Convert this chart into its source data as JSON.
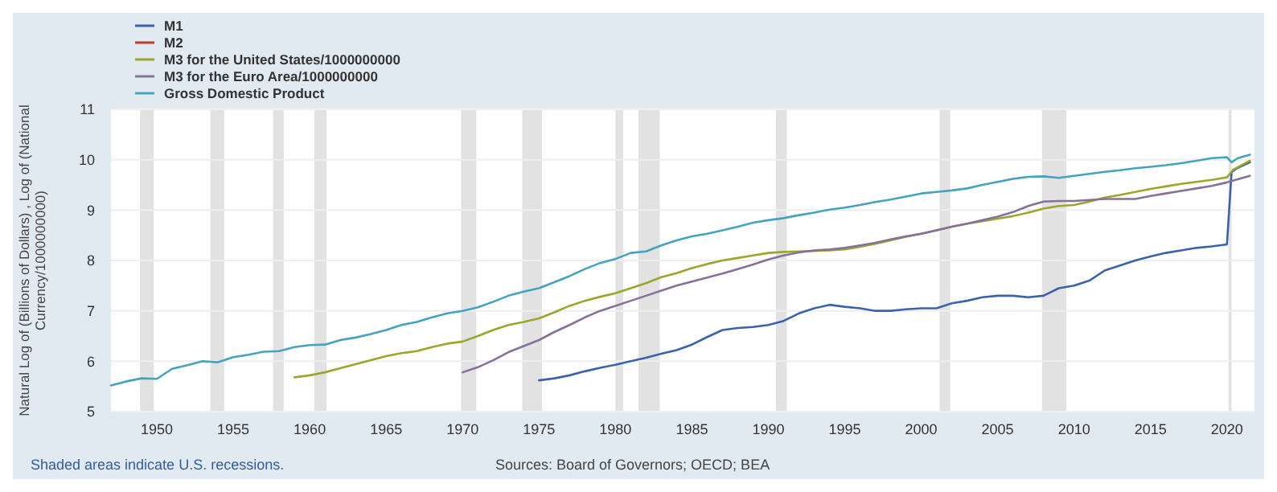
{
  "chart_data": {
    "type": "line",
    "ylabel": "Natural Log of (Billions of Dollars) , Log of (National Currency/1000000000)",
    "annotations": [
      "Shaded areas indicate U.S. recessions.",
      "Sources: Board of Governors; OECD; BEA"
    ],
    "xlim": [
      1947,
      2021.8
    ],
    "xticks": [
      1950,
      1955,
      1960,
      1965,
      1970,
      1975,
      1980,
      1985,
      1990,
      1995,
      2000,
      2005,
      2010,
      2015,
      2020
    ],
    "ylim": [
      5,
      11
    ],
    "yticks": [
      5,
      6,
      7,
      8,
      9,
      10,
      11
    ],
    "grid": "y",
    "legend": "top left",
    "line_style": "solid",
    "marker": "none",
    "bands": [
      {
        "axis": "x",
        "from": 1948.9,
        "to": 1949.8,
        "color": "#e2e2e2"
      },
      {
        "axis": "x",
        "from": 1953.5,
        "to": 1954.4,
        "color": "#e2e2e2"
      },
      {
        "axis": "x",
        "from": 1957.6,
        "to": 1958.3,
        "color": "#e2e2e2"
      },
      {
        "axis": "x",
        "from": 1960.3,
        "to": 1961.1,
        "color": "#e2e2e2"
      },
      {
        "axis": "x",
        "from": 1969.9,
        "to": 1970.9,
        "color": "#e2e2e2"
      },
      {
        "axis": "x",
        "from": 1973.9,
        "to": 1975.2,
        "color": "#e2e2e2"
      },
      {
        "axis": "x",
        "from": 1980.0,
        "to": 1980.5,
        "color": "#e2e2e2"
      },
      {
        "axis": "x",
        "from": 1981.5,
        "to": 1982.9,
        "color": "#e2e2e2"
      },
      {
        "axis": "x",
        "from": 1990.5,
        "to": 1991.2,
        "color": "#e2e2e2"
      },
      {
        "axis": "x",
        "from": 2001.2,
        "to": 2001.9,
        "color": "#e2e2e2"
      },
      {
        "axis": "x",
        "from": 2007.9,
        "to": 2009.5,
        "color": "#e2e2e2"
      },
      {
        "axis": "x",
        "from": 2020.1,
        "to": 2020.3,
        "color": "#e2e2e2"
      }
    ],
    "series": [
      {
        "name": "M1",
        "color": "#3a62ad",
        "x": [
          1975,
          1976,
          1977,
          1978,
          1979,
          1980,
          1981,
          1982,
          1983,
          1984,
          1985,
          1986,
          1987,
          1988,
          1989,
          1990,
          1991,
          1992,
          1993,
          1994,
          1995,
          1996,
          1997,
          1998,
          1999,
          2000,
          2001,
          2002,
          2003,
          2004,
          2005,
          2006,
          2007,
          2008,
          2009,
          2010,
          2011,
          2012,
          2013,
          2014,
          2015,
          2016,
          2017,
          2018,
          2019,
          2020.0,
          2020.3,
          2020.6,
          2021.5
        ],
        "values": [
          5.62,
          5.66,
          5.72,
          5.8,
          5.87,
          5.93,
          6.0,
          6.07,
          6.15,
          6.22,
          6.33,
          6.48,
          6.62,
          6.66,
          6.68,
          6.72,
          6.8,
          6.95,
          7.05,
          7.12,
          7.08,
          7.05,
          7.0,
          7.0,
          7.03,
          7.05,
          7.05,
          7.15,
          7.2,
          7.27,
          7.3,
          7.3,
          7.27,
          7.3,
          7.45,
          7.5,
          7.6,
          7.8,
          7.9,
          8.0,
          8.08,
          8.15,
          8.2,
          8.25,
          8.28,
          8.32,
          9.75,
          9.82,
          9.95
        ]
      },
      {
        "name": "M2",
        "color": "#c0392b"
      },
      {
        "name": "M3 for the United States/1000000000",
        "color": "#9ba62b",
        "x": [
          1959,
          1960,
          1961,
          1962,
          1963,
          1964,
          1965,
          1966,
          1967,
          1968,
          1969,
          1970,
          1971,
          1972,
          1973,
          1974,
          1975,
          1976,
          1977,
          1978,
          1979,
          1980,
          1981,
          1982,
          1983,
          1984,
          1985,
          1986,
          1987,
          1988,
          1989,
          1990,
          1991,
          1992,
          1993,
          1994,
          1995,
          1996,
          1997,
          1998,
          1999,
          2000,
          2001,
          2002,
          2003,
          2004,
          2005,
          2006,
          2007,
          2008,
          2009,
          2010,
          2011,
          2012,
          2013,
          2014,
          2015,
          2016,
          2017,
          2018,
          2019,
          2020.0,
          2020.4,
          2021.5
        ],
        "values": [
          5.68,
          5.72,
          5.78,
          5.86,
          5.94,
          6.02,
          6.1,
          6.16,
          6.2,
          6.28,
          6.35,
          6.39,
          6.5,
          6.62,
          6.72,
          6.78,
          6.85,
          6.97,
          7.1,
          7.2,
          7.28,
          7.35,
          7.45,
          7.55,
          7.67,
          7.75,
          7.85,
          7.93,
          8.0,
          8.05,
          8.1,
          8.15,
          8.17,
          8.18,
          8.19,
          8.2,
          8.22,
          8.27,
          8.33,
          8.4,
          8.47,
          8.53,
          8.6,
          8.67,
          8.73,
          8.78,
          8.83,
          8.88,
          8.95,
          9.03,
          9.08,
          9.1,
          9.17,
          9.25,
          9.3,
          9.36,
          9.42,
          9.47,
          9.52,
          9.56,
          9.6,
          9.65,
          9.8,
          9.98
        ]
      },
      {
        "name": "M3 for the Euro Area/1000000000",
        "color": "#86709c",
        "x": [
          1970,
          1971,
          1972,
          1973,
          1974,
          1975,
          1976,
          1977,
          1978,
          1979,
          1980,
          1981,
          1982,
          1983,
          1984,
          1985,
          1986,
          1987,
          1988,
          1989,
          1990,
          1991,
          1992,
          1993,
          1994,
          1995,
          1996,
          1997,
          1998,
          1999,
          2000,
          2001,
          2002,
          2003,
          2004,
          2005,
          2006,
          2007,
          2008,
          2009,
          2010,
          2011,
          2012,
          2013,
          2014,
          2015,
          2016,
          2017,
          2018,
          2019,
          2020,
          2021.5
        ],
        "values": [
          5.78,
          5.88,
          6.02,
          6.18,
          6.3,
          6.42,
          6.58,
          6.72,
          6.87,
          7.0,
          7.1,
          7.2,
          7.3,
          7.4,
          7.5,
          7.58,
          7.66,
          7.74,
          7.83,
          7.92,
          8.02,
          8.1,
          8.16,
          8.2,
          8.22,
          8.25,
          8.3,
          8.35,
          8.42,
          8.48,
          8.53,
          8.6,
          8.67,
          8.73,
          8.8,
          8.87,
          8.96,
          9.08,
          9.17,
          9.18,
          9.18,
          9.2,
          9.22,
          9.22,
          9.22,
          9.28,
          9.33,
          9.38,
          9.43,
          9.48,
          9.55,
          9.68
        ]
      },
      {
        "name": "Gross Domestic Product",
        "color": "#45a3bf",
        "x": [
          1947,
          1948,
          1949,
          1950,
          1951,
          1952,
          1953,
          1954,
          1955,
          1956,
          1957,
          1958,
          1959,
          1960,
          1961,
          1962,
          1963,
          1964,
          1965,
          1966,
          1967,
          1968,
          1969,
          1970,
          1971,
          1972,
          1973,
          1974,
          1975,
          1976,
          1977,
          1978,
          1979,
          1980,
          1981,
          1982,
          1983,
          1984,
          1985,
          1986,
          1987,
          1988,
          1989,
          1990,
          1991,
          1992,
          1993,
          1994,
          1995,
          1996,
          1997,
          1998,
          1999,
          2000,
          2001,
          2002,
          2003,
          2004,
          2005,
          2006,
          2007,
          2008,
          2009,
          2010,
          2011,
          2012,
          2013,
          2014,
          2015,
          2016,
          2017,
          2018,
          2019,
          2020.0,
          2020.3,
          2020.7,
          2021.5
        ],
        "values": [
          5.52,
          5.6,
          5.66,
          5.65,
          5.85,
          5.92,
          6.0,
          5.98,
          6.08,
          6.13,
          6.19,
          6.2,
          6.28,
          6.32,
          6.33,
          6.42,
          6.47,
          6.54,
          6.62,
          6.72,
          6.78,
          6.87,
          6.95,
          7.0,
          7.07,
          7.18,
          7.3,
          7.38,
          7.45,
          7.57,
          7.69,
          7.83,
          7.95,
          8.03,
          8.15,
          8.18,
          8.3,
          8.4,
          8.48,
          8.53,
          8.6,
          8.67,
          8.75,
          8.8,
          8.84,
          8.9,
          8.95,
          9.01,
          9.05,
          9.1,
          9.16,
          9.21,
          9.27,
          9.33,
          9.36,
          9.39,
          9.43,
          9.5,
          9.56,
          9.62,
          9.66,
          9.67,
          9.64,
          9.68,
          9.72,
          9.76,
          9.79,
          9.83,
          9.86,
          9.89,
          9.93,
          9.98,
          10.03,
          10.05,
          9.95,
          10.03,
          10.1
        ]
      }
    ]
  }
}
